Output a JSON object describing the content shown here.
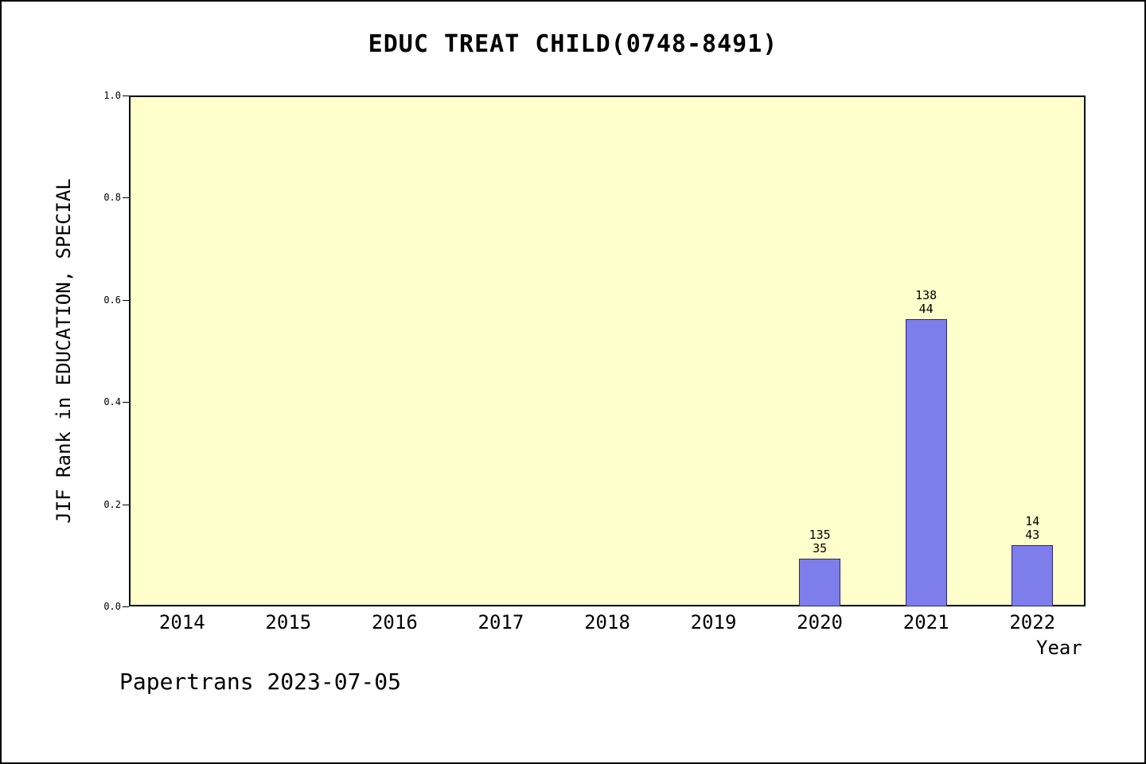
{
  "title": "EDUC TREAT CHILD(0748-8491)",
  "footer": "Papertrans 2023-07-05",
  "colors": {
    "plot_background": "#ffffcc",
    "bar_fill": "#7d7dec",
    "axis": "#000000"
  },
  "chart_data": {
    "type": "bar",
    "title": "EDUC TREAT CHILD(0748-8491)",
    "xlabel": "Year",
    "ylabel": "JIF Rank in EDUCATION, SPECIAL",
    "categories": [
      "2014",
      "2015",
      "2016",
      "2017",
      "2018",
      "2019",
      "2020",
      "2021",
      "2022"
    ],
    "values": [
      null,
      null,
      null,
      null,
      null,
      null,
      0.093,
      0.563,
      0.12
    ],
    "bar_labels": [
      null,
      null,
      null,
      null,
      null,
      null,
      [
        "135",
        "35"
      ],
      [
        "138",
        "44"
      ],
      [
        "14",
        "43"
      ]
    ],
    "ylim": [
      0.0,
      1.0
    ],
    "yticks": [
      0.0,
      0.2,
      0.4,
      0.6,
      0.8,
      1.0
    ],
    "grid": "off",
    "legend": "none",
    "annotation_note": "bar labels show rank (top) over total (bottom)"
  }
}
